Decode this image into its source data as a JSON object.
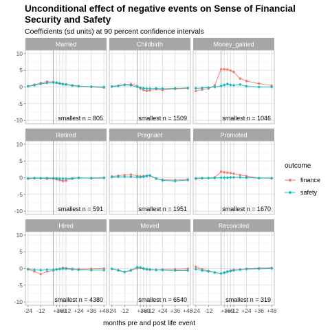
{
  "chart_data": {
    "type": "line",
    "title": "Unconditional effect of negative events on Sense of Financial Security and Safety",
    "title_lines": [
      "Unconditional effect of negative events on Sense of Financial",
      "Security and Safety"
    ],
    "subtitle": "Coefficients (sd units) at 90 percent confidence intervals",
    "xlabel": "months pre and post life event",
    "ylabel": "",
    "x": [
      -24,
      -18,
      -12,
      -6,
      0,
      3,
      6,
      9,
      12,
      18,
      24,
      36,
      48
    ],
    "xticks": [
      -24,
      -12,
      3,
      6,
      9,
      12,
      24,
      36,
      48
    ],
    "xtick_labels": [
      "-24",
      "-12",
      "+3",
      "+6",
      "+9",
      "+12",
      "+24",
      "+36",
      "+48"
    ],
    "yticks": [
      -10,
      -5,
      0,
      5,
      10
    ],
    "ylim": [
      -11,
      11
    ],
    "event_line_x": 0,
    "grid": true,
    "legend": {
      "title": "outcome",
      "position": "right",
      "entries": [
        {
          "name": "finance",
          "color": "#F8766D"
        },
        {
          "name": "safety",
          "color": "#00BFC4"
        }
      ]
    },
    "facets": [
      {
        "name": "Married",
        "n_label": "smallest n = 805",
        "series": [
          {
            "name": "finance",
            "values": [
              0.2,
              0.7,
              1.2,
              1.6,
              1.5,
              1.2,
              1.0,
              0.8,
              0.8,
              0.5,
              0.3,
              0.0,
              -0.2
            ]
          },
          {
            "name": "safety",
            "values": [
              0.2,
              0.5,
              0.9,
              1.2,
              1.3,
              1.3,
              1.1,
              0.9,
              0.7,
              0.4,
              0.2,
              0.1,
              0.0
            ]
          }
        ]
      },
      {
        "name": "Childbirth",
        "n_label": "smallest n = 1509",
        "series": [
          {
            "name": "finance",
            "values": [
              0.2,
              0.4,
              0.7,
              0.9,
              0.3,
              -0.5,
              -0.9,
              -1.2,
              -1.0,
              -0.7,
              -0.9,
              -0.6,
              -0.4
            ]
          },
          {
            "name": "safety",
            "values": [
              0.1,
              0.3,
              0.6,
              0.5,
              0.0,
              -0.2,
              -0.4,
              -0.5,
              -0.5,
              -0.4,
              -0.5,
              -0.4,
              -0.3
            ]
          }
        ]
      },
      {
        "name": "Money_gained",
        "n_label": "smallest n = 1046",
        "series": [
          {
            "name": "finance",
            "values": [
              -1.2,
              -0.8,
              -0.5,
              0.5,
              5.3,
              5.3,
              5.2,
              4.9,
              4.5,
              2.5,
              1.8,
              1.0,
              0.4
            ]
          },
          {
            "name": "safety",
            "values": [
              -0.4,
              -0.3,
              -0.2,
              0.0,
              0.3,
              0.6,
              0.9,
              0.6,
              0.5,
              0.7,
              0.2,
              0.0,
              0.0
            ]
          }
        ]
      },
      {
        "name": "Retired",
        "n_label": "smallest n = 591",
        "series": [
          {
            "name": "finance",
            "values": [
              -0.3,
              -0.2,
              -0.2,
              -0.3,
              -0.3,
              -0.5,
              -0.7,
              -1.0,
              -0.9,
              -0.3,
              0.0,
              -0.2,
              -0.1
            ]
          },
          {
            "name": "safety",
            "values": [
              -0.2,
              -0.1,
              -0.1,
              -0.1,
              -0.1,
              -0.2,
              -0.3,
              -0.3,
              -0.3,
              -0.2,
              -0.1,
              -0.1,
              0.0
            ]
          }
        ]
      },
      {
        "name": "Pregnant",
        "n_label": "smallest n = 1951",
        "series": [
          {
            "name": "finance",
            "values": [
              0.4,
              0.6,
              0.8,
              0.9,
              0.6,
              0.4,
              0.5,
              0.6,
              0.6,
              -0.3,
              -0.6,
              -0.7,
              -0.5
            ]
          },
          {
            "name": "safety",
            "values": [
              0.2,
              0.3,
              0.3,
              0.3,
              0.2,
              0.2,
              0.3,
              0.5,
              0.7,
              -0.2,
              -0.8,
              -1.0,
              -0.7
            ]
          }
        ]
      },
      {
        "name": "Promoted",
        "n_label": "smallest n = 1670",
        "series": [
          {
            "name": "finance",
            "values": [
              -0.3,
              -0.2,
              -0.1,
              0.1,
              1.8,
              1.6,
              1.5,
              1.4,
              1.2,
              0.8,
              0.5,
              -0.1,
              -0.2
            ]
          },
          {
            "name": "safety",
            "values": [
              -0.2,
              -0.1,
              -0.1,
              -0.1,
              0.0,
              0.0,
              0.0,
              0.1,
              0.1,
              0.1,
              0.0,
              -0.1,
              -0.1
            ]
          }
        ]
      },
      {
        "name": "Hired",
        "n_label": "smallest n = 4380",
        "series": [
          {
            "name": "finance",
            "values": [
              -0.3,
              -0.9,
              -1.7,
              -0.9,
              -0.6,
              -0.3,
              -0.1,
              0.2,
              0.1,
              -0.1,
              -0.2,
              -0.1,
              0.0
            ]
          },
          {
            "name": "safety",
            "values": [
              -0.2,
              -0.4,
              -0.5,
              -0.4,
              -0.4,
              -0.3,
              -0.2,
              -0.1,
              -0.1,
              -0.3,
              -0.4,
              -0.5,
              -0.5
            ]
          }
        ]
      },
      {
        "name": "Moved",
        "n_label": "smallest n = 6540",
        "series": [
          {
            "name": "finance",
            "values": [
              -0.2,
              -0.6,
              -1.1,
              -0.6,
              0.0,
              0.2,
              -0.1,
              -0.3,
              -0.4,
              -0.5,
              -0.3,
              -0.2,
              -0.1
            ]
          },
          {
            "name": "safety",
            "values": [
              -0.1,
              -0.5,
              -1.0,
              -0.5,
              0.4,
              0.3,
              0.0,
              -0.2,
              -0.3,
              -0.4,
              -0.5,
              -0.6,
              -0.6
            ]
          }
        ]
      },
      {
        "name": "Reconciled",
        "n_label": "smallest n = 319",
        "series": [
          {
            "name": "finance",
            "values": [
              0.5,
              -0.2,
              -0.7,
              -1.2,
              -1.5,
              -1.2,
              -0.9,
              -0.6,
              -0.4,
              -0.3,
              -0.1,
              0.1,
              0.2
            ]
          },
          {
            "name": "safety",
            "values": [
              -0.2,
              -0.6,
              -0.9,
              -1.2,
              -1.5,
              -1.3,
              -1.0,
              -0.8,
              -0.6,
              -0.4,
              -0.2,
              -0.1,
              0.0
            ]
          }
        ]
      }
    ]
  }
}
